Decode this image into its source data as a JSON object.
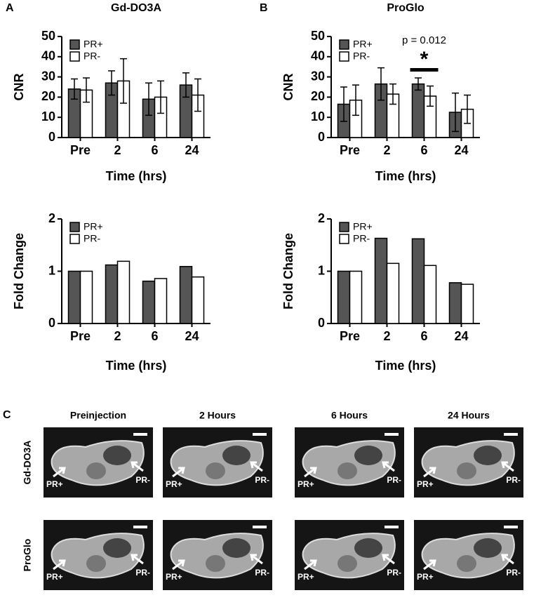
{
  "panel_labels": [
    "A",
    "B",
    "C"
  ],
  "chart_data": [
    {
      "type": "bar",
      "title": "Gd-DO3A",
      "y_label": "CNR",
      "x_label": "Time (hrs)",
      "categories": [
        "Pre",
        "2",
        "6",
        "24"
      ],
      "ylim": [
        0,
        50
      ],
      "yticks": [
        0,
        10,
        20,
        30,
        40,
        50
      ],
      "legend": "top-left",
      "series": [
        {
          "name": "PR+",
          "color": "#555555",
          "values": [
            24,
            27,
            19,
            26
          ],
          "errors": [
            5,
            6,
            8,
            6
          ]
        },
        {
          "name": "PR-",
          "color": "#ffffff",
          "values": [
            23.5,
            28,
            20,
            21
          ],
          "errors": [
            6,
            11,
            8,
            8
          ]
        }
      ]
    },
    {
      "type": "bar",
      "title": "ProGlo",
      "y_label": "CNR",
      "x_label": "Time (hrs)",
      "categories": [
        "Pre",
        "2",
        "6",
        "24"
      ],
      "ylim": [
        0,
        50
      ],
      "yticks": [
        0,
        10,
        20,
        30,
        40,
        50
      ],
      "legend": "top-left",
      "annotations": [
        "p = 0.012",
        "*"
      ],
      "series": [
        {
          "name": "PR+",
          "color": "#555555",
          "values": [
            16.5,
            26.5,
            26.5,
            12.5
          ],
          "errors": [
            8.5,
            8,
            3,
            9.5
          ]
        },
        {
          "name": "PR-",
          "color": "#ffffff",
          "values": [
            18.5,
            21.5,
            20.5,
            14
          ],
          "errors": [
            7.5,
            5,
            5,
            7
          ]
        }
      ]
    },
    {
      "type": "bar",
      "y_label": "Fold Change",
      "x_label": "Time (hrs)",
      "categories": [
        "Pre",
        "2",
        "6",
        "24"
      ],
      "ylim": [
        0,
        2
      ],
      "yticks": [
        0,
        1,
        2
      ],
      "legend": "top-left",
      "series": [
        {
          "name": "PR+",
          "color": "#555555",
          "values": [
            1,
            1.12,
            0.81,
            1.09
          ]
        },
        {
          "name": "PR-",
          "color": "#ffffff",
          "values": [
            1,
            1.19,
            0.86,
            0.89
          ]
        }
      ]
    },
    {
      "type": "bar",
      "y_label": "Fold Change",
      "x_label": "Time (hrs)",
      "categories": [
        "Pre",
        "2",
        "6",
        "24"
      ],
      "ylim": [
        0,
        2
      ],
      "yticks": [
        0,
        1,
        2
      ],
      "legend": "top-left",
      "series": [
        {
          "name": "PR+",
          "color": "#555555",
          "values": [
            1,
            1.63,
            1.62,
            0.78
          ]
        },
        {
          "name": "PR-",
          "color": "#ffffff",
          "values": [
            1,
            1.15,
            1.11,
            0.75
          ]
        }
      ]
    }
  ],
  "image_panel": {
    "columns": [
      "Preinjection",
      "2 Hours",
      "6 Hours",
      "24 Hours"
    ],
    "rows": [
      "Gd-DO3A",
      "ProGlo"
    ],
    "arrow_labels": [
      "PR+",
      "PR-"
    ]
  }
}
